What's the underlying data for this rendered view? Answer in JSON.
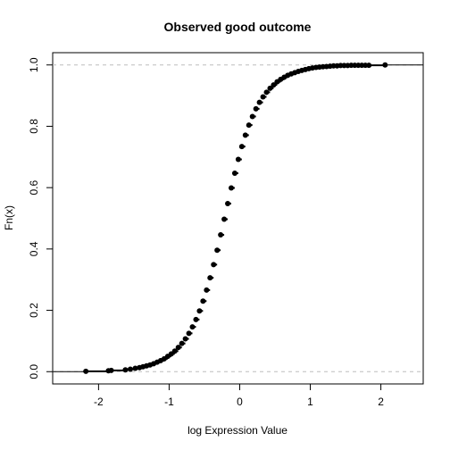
{
  "chart_data": {
    "type": "scatter",
    "subtype": "ecdf",
    "title": "Observed good outcome",
    "xlabel": "log Expression Value",
    "ylabel": "Fn(x)",
    "xlim": [
      -2.65,
      2.6
    ],
    "ylim": [
      -0.04,
      1.04
    ],
    "xticks": [
      -2,
      -1,
      0,
      1,
      2
    ],
    "yticks": [
      0.0,
      0.2,
      0.4,
      0.6,
      0.8,
      1.0
    ],
    "xtick_labels": [
      "-2",
      "-1",
      "0",
      "1",
      "2"
    ],
    "ytick_labels": [
      "0.0",
      "0.2",
      "0.4",
      "0.6",
      "0.8",
      "1.0"
    ],
    "reference_lines": [
      0,
      1
    ],
    "grid": false,
    "point_color": "#000000",
    "reference_line_color": "#bebebe",
    "series": [
      {
        "x": [
          -2.18,
          -1.86,
          -1.82,
          -1.62,
          -1.55,
          -1.48,
          -1.42,
          -1.37,
          -1.32,
          -1.27,
          -1.22,
          -1.17,
          -1.12,
          -1.07,
          -1.02,
          -0.97,
          -0.92,
          -0.87,
          -0.82,
          -0.77,
          -0.72,
          -0.67,
          -0.62,
          -0.57,
          -0.52,
          -0.47,
          -0.42,
          -0.37,
          -0.32,
          -0.27,
          -0.22,
          -0.17,
          -0.12,
          -0.07,
          -0.02,
          0.03,
          0.08,
          0.13,
          0.18,
          0.23,
          0.28,
          0.33,
          0.38,
          0.43,
          0.48,
          0.53,
          0.58,
          0.63,
          0.68,
          0.73,
          0.78,
          0.83,
          0.88,
          0.93,
          0.98,
          1.03,
          1.08,
          1.13,
          1.18,
          1.23,
          1.28,
          1.33,
          1.38,
          1.43,
          1.48,
          1.53,
          1.58,
          1.63,
          1.68,
          1.73,
          1.78,
          1.83,
          2.06
        ],
        "y": [
          0.001,
          0.003,
          0.004,
          0.006,
          0.008,
          0.011,
          0.013,
          0.016,
          0.019,
          0.022,
          0.026,
          0.031,
          0.036,
          0.042,
          0.05,
          0.058,
          0.067,
          0.079,
          0.092,
          0.107,
          0.125,
          0.146,
          0.17,
          0.198,
          0.23,
          0.266,
          0.306,
          0.349,
          0.396,
          0.446,
          0.497,
          0.548,
          0.599,
          0.647,
          0.692,
          0.734,
          0.771,
          0.804,
          0.832,
          0.857,
          0.878,
          0.896,
          0.911,
          0.924,
          0.935,
          0.945,
          0.953,
          0.96,
          0.966,
          0.971,
          0.975,
          0.979,
          0.982,
          0.985,
          0.988,
          0.99,
          0.992,
          0.993,
          0.994,
          0.995,
          0.996,
          0.997,
          0.997,
          0.998,
          0.998,
          0.998,
          0.999,
          0.999,
          0.999,
          0.999,
          0.999,
          0.999,
          1.0
        ]
      }
    ]
  }
}
